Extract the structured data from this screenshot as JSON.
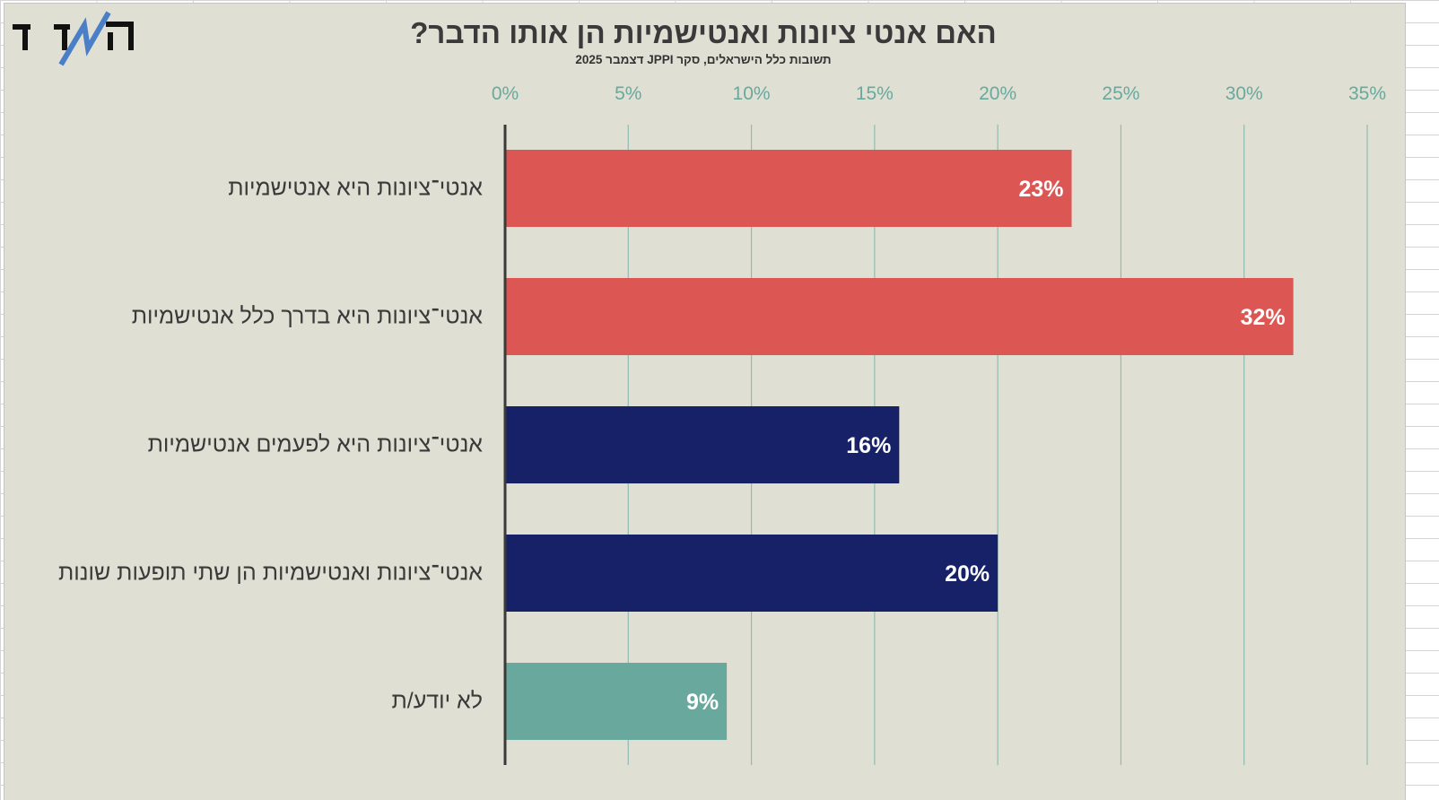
{
  "header": {
    "logo_text": "המדד",
    "title": "האם אנטי ציונות ואנטישמיות הן אותו הדבר?",
    "subtitle": "תשובות כלל הישראלים, סקר JPPI דצמבר 2025"
  },
  "colors": {
    "background": "#e0dfd3",
    "red": "#dc5754",
    "navy": "#172168",
    "teal": "#69a99d",
    "axis_text": "#69a99d",
    "gridline": "#8fbcb2",
    "baseline": "#3a3a3a",
    "label_text": "#3a3a3a",
    "logo_accent": "#4a7fc8"
  },
  "chart_data": {
    "type": "bar",
    "orientation": "horizontal",
    "title": "האם אנטי ציונות ואנטישמיות הן אותו הדבר?",
    "subtitle": "תשובות כלל הישראלים, סקר JPPI דצמבר 2025",
    "xlabel": "",
    "ylabel": "",
    "xlim": [
      0,
      35
    ],
    "x_ticks": [
      0,
      5,
      10,
      15,
      20,
      25,
      30,
      35
    ],
    "x_tick_labels": [
      "0%",
      "5%",
      "10%",
      "15%",
      "20%",
      "25%",
      "30%",
      "35%"
    ],
    "x_axis_position": "top",
    "grid": true,
    "legend": "none",
    "categories": [
      "אנטי־ציונות היא אנטישמיות",
      "אנטי־ציונות היא בדרך כלל אנטישמיות",
      "אנטי־ציונות היא לפעמים אנטישמיות",
      "אנטי־ציונות ואנטישמיות הן שתי תופעות שונות",
      "לא יודע/ת"
    ],
    "values": [
      23,
      32,
      16,
      20,
      9
    ],
    "data_labels": [
      "23%",
      "32%",
      "16%",
      "20%",
      "9%"
    ],
    "bar_colors": [
      "red",
      "red",
      "navy",
      "navy",
      "teal"
    ]
  }
}
